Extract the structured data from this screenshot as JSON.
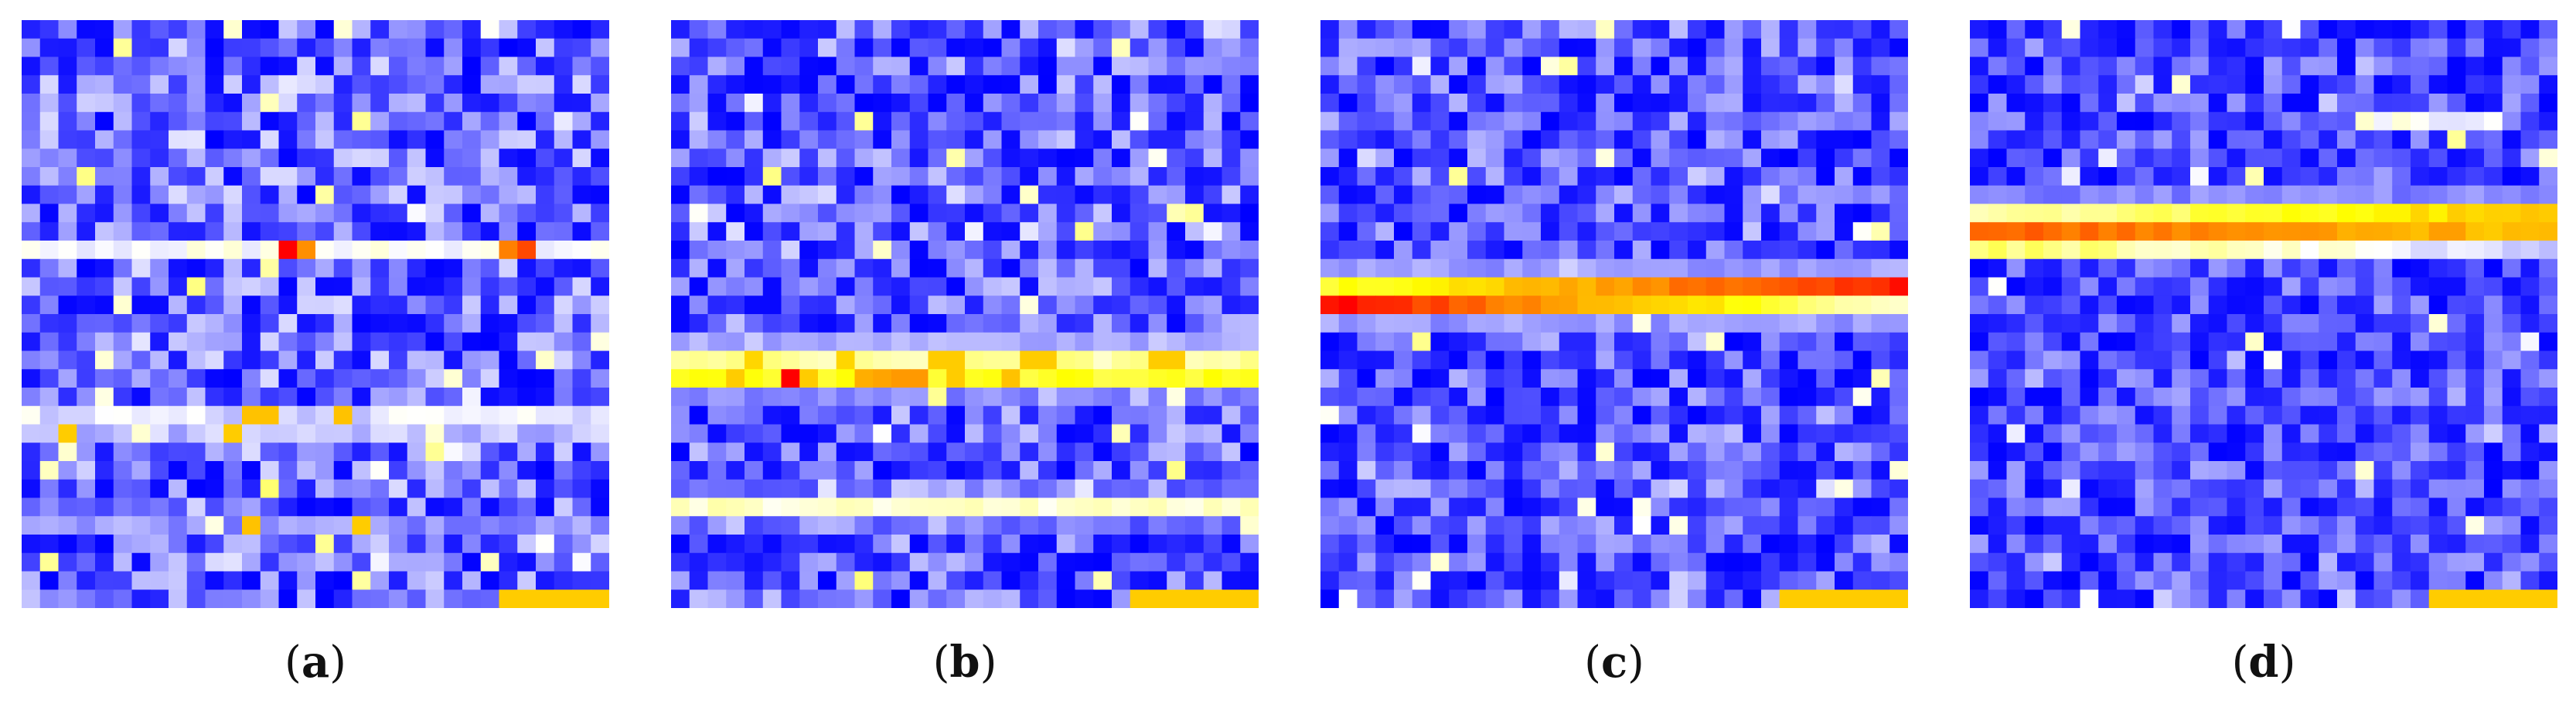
{
  "chart_data": [
    {
      "type": "heatmap",
      "panel": "a",
      "label": "a",
      "rows": 32,
      "cols": 32,
      "colormap": [
        "#0000ff",
        "#ffffff",
        "#ffff00",
        "#ff8000",
        "#ff0000"
      ],
      "background_level": 0.24,
      "seed": 11,
      "bands": [
        {
          "row": 12,
          "strength": 0.26,
          "halo": 0.0,
          "hotspots": [
            [
              14,
              1.0
            ],
            [
              15,
              0.72
            ],
            [
              26,
              0.75
            ],
            [
              27,
              0.86
            ]
          ]
        },
        {
          "row": 21,
          "strength": 0.22,
          "halo": 0.0,
          "hotspots": [
            [
              12,
              0.62
            ],
            [
              13,
              0.62
            ],
            [
              17,
              0.62
            ]
          ]
        },
        {
          "row": 22,
          "strength": 0.18,
          "halo": 0.0,
          "hotspots": [
            [
              2,
              0.6
            ],
            [
              11,
              0.6
            ]
          ]
        },
        {
          "row": 27,
          "strength": 0.14,
          "halo": 0.0,
          "hotspots": [
            [
              12,
              0.62
            ],
            [
              18,
              0.6
            ]
          ]
        }
      ],
      "bottom_strip": {
        "row": 31,
        "cols": [
          26,
          31
        ],
        "level": 0.6
      }
    },
    {
      "type": "heatmap",
      "panel": "b",
      "label": "b",
      "rows": 32,
      "cols": 32,
      "colormap": [
        "#0000ff",
        "#ffffff",
        "#ffff00",
        "#ff8000",
        "#ff0000"
      ],
      "background_level": 0.22,
      "seed": 23,
      "bands": [
        {
          "row": 18,
          "strength": 0.34,
          "halo": 0.14,
          "hotspots": [
            [
              4,
              0.58
            ],
            [
              9,
              0.58
            ],
            [
              14,
              0.6
            ],
            [
              15,
              0.6
            ],
            [
              19,
              0.6
            ],
            [
              20,
              0.6
            ],
            [
              26,
              0.6
            ],
            [
              27,
              0.6
            ]
          ]
        },
        {
          "row": 19,
          "strength": 0.46,
          "halo": 0.1,
          "hotspots": [
            [
              3,
              0.6
            ],
            [
              6,
              1.0
            ],
            [
              7,
              0.6
            ],
            [
              10,
              0.66
            ],
            [
              11,
              0.68
            ],
            [
              12,
              0.7
            ],
            [
              13,
              0.7
            ],
            [
              15,
              0.6
            ],
            [
              18,
              0.62
            ]
          ]
        },
        {
          "row": 26,
          "strength": 0.3,
          "halo": 0.06,
          "hotspots": []
        }
      ],
      "bottom_strip": {
        "row": 31,
        "cols": [
          25,
          31
        ],
        "level": 0.6
      }
    },
    {
      "type": "heatmap",
      "panel": "c",
      "label": "c",
      "rows": 32,
      "cols": 32,
      "colormap": [
        "#0000ff",
        "#ffffff",
        "#ffff00",
        "#ff8000",
        "#ff0000"
      ],
      "background_level": 0.2,
      "seed": 37,
      "bands": [
        {
          "row": 14,
          "strength": 0.5,
          "halo": 0.12,
          "gradient": [
            0.45,
            0.95
          ],
          "hotspots": []
        },
        {
          "row": 15,
          "strength": 0.95,
          "halo": 0.12,
          "gradient": [
            0.98,
            0.3
          ],
          "hotspots": []
        }
      ],
      "bottom_strip": {
        "row": 31,
        "cols": [
          25,
          31
        ],
        "level": 0.6
      }
    },
    {
      "type": "heatmap",
      "panel": "d",
      "label": "d",
      "rows": 32,
      "cols": 32,
      "colormap": [
        "#0000ff",
        "#ffffff",
        "#ffff00",
        "#ff8000",
        "#ff0000"
      ],
      "background_level": 0.18,
      "seed": 53,
      "bands": [
        {
          "row": 5,
          "strength": 0.26,
          "halo": 0.0,
          "range": [
            21,
            28
          ],
          "hotspots": []
        },
        {
          "row": 10,
          "strength": 0.42,
          "halo": 0.1,
          "gradient": [
            0.3,
            0.62
          ],
          "hotspots": []
        },
        {
          "row": 11,
          "strength": 0.95,
          "halo": 0.18,
          "gradient": [
            0.82,
            0.62
          ],
          "hotspots": []
        },
        {
          "row": 12,
          "strength": 0.36,
          "halo": 0.0,
          "gradient": [
            0.4,
            0.2
          ],
          "hotspots": []
        }
      ],
      "bottom_strip": {
        "row": 31,
        "cols": [
          25,
          31
        ],
        "level": 0.6
      }
    }
  ]
}
